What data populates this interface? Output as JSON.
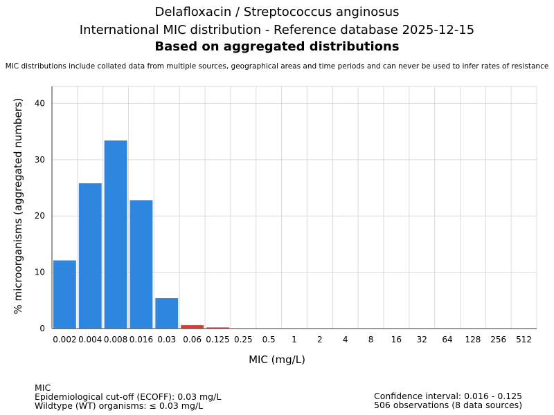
{
  "header": {
    "title_line1": "Delafloxacin / Streptococcus anginosus",
    "title_line2": "International MIC distribution - Reference database 2025-12-15",
    "title_line3": "Based on aggregated distributions",
    "note": "MIC distributions include collated data from multiple sources, geographical areas and time periods and can never be used to infer rates of resistance"
  },
  "footer": {
    "left": [
      "MIC",
      "Epidemiological cut-off (ECOFF): 0.03 mg/L",
      "Wildtype (WT) organisms: ≤ 0.03 mg/L"
    ],
    "right": [
      "Confidence interval: 0.016 - 0.125",
      "506 observations (8 data sources)"
    ]
  },
  "chart_data": {
    "type": "bar",
    "xlabel": "MIC (mg/L)",
    "ylabel": "% microorganisms (aggregated numbers)",
    "categories": [
      "0.002",
      "0.004",
      "0.008",
      "0.016",
      "0.03",
      "0.06",
      "0.125",
      "0.25",
      "0.5",
      "1",
      "2",
      "4",
      "8",
      "16",
      "32",
      "64",
      "128",
      "256",
      "512"
    ],
    "values": [
      12.1,
      25.8,
      33.4,
      22.8,
      5.4,
      0.6,
      0.2,
      0,
      0,
      0,
      0,
      0,
      0,
      0,
      0,
      0,
      0,
      0,
      0
    ],
    "ylim": [
      0,
      43
    ],
    "yticks": [
      0,
      10,
      20,
      30,
      40
    ],
    "grid": true,
    "colors": {
      "wildtype": "#2e86de",
      "non_wildtype": "#d63a3a"
    },
    "wildtype_count": 5
  }
}
